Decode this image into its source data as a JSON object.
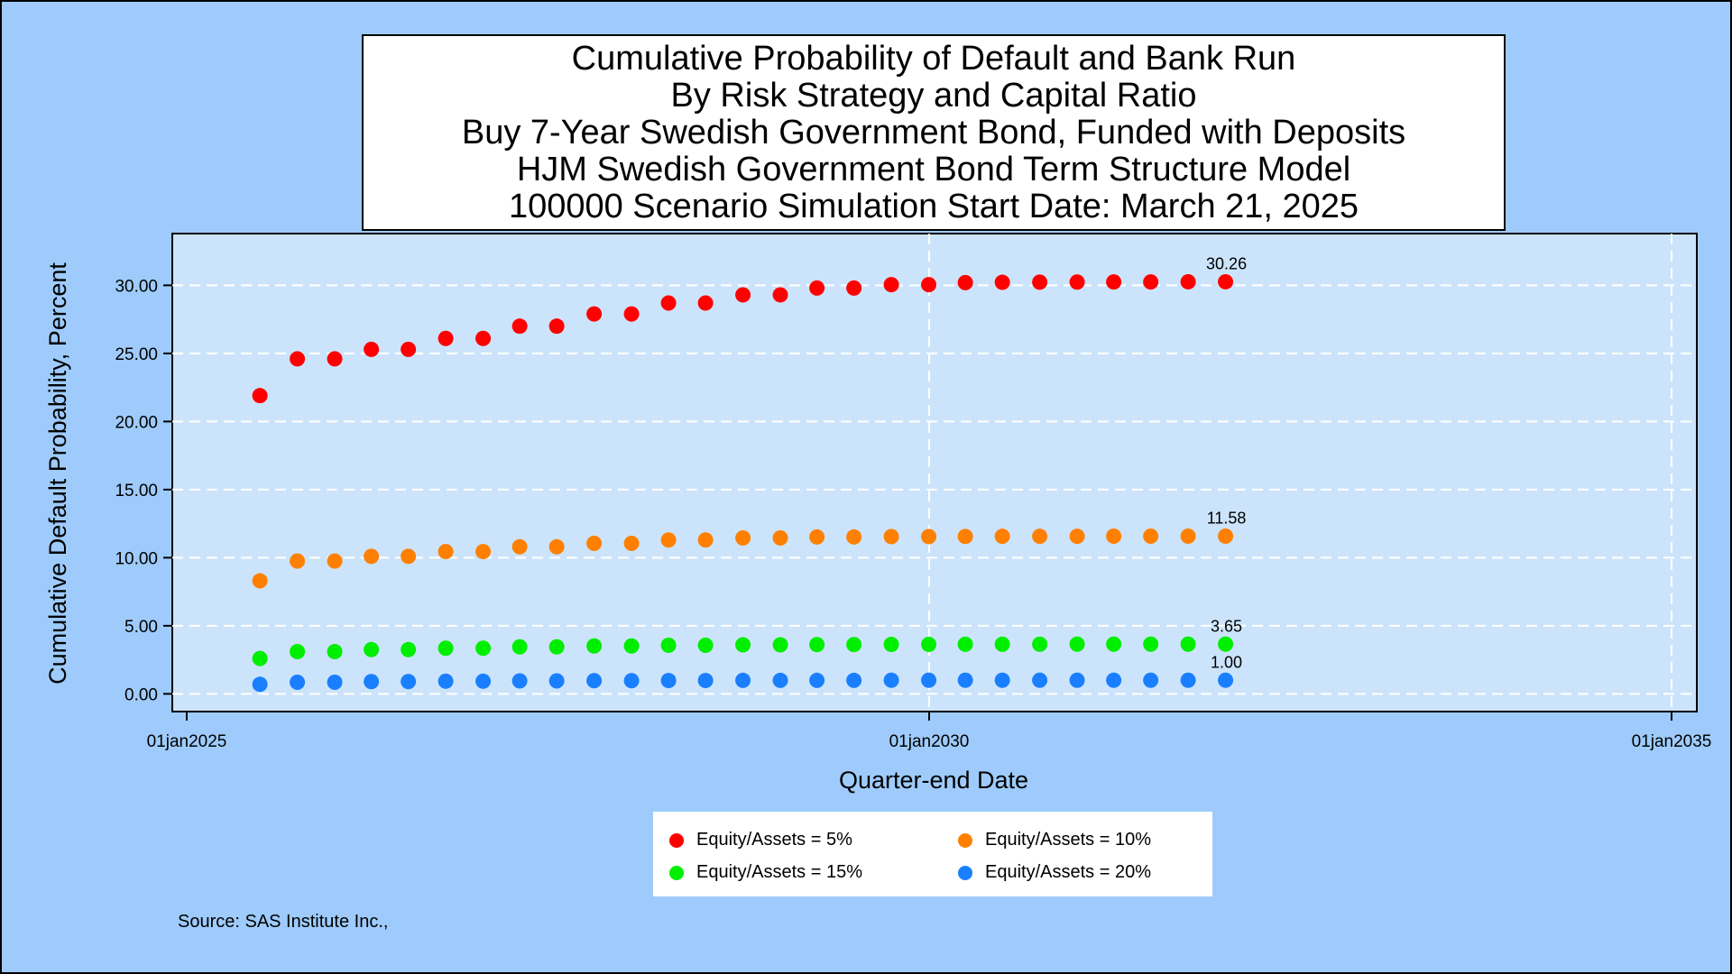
{
  "chart_data": {
    "type": "scatter",
    "title_lines": [
      "Cumulative Probability of Default and Bank Run",
      "By Risk Strategy and Capital Ratio",
      "Buy 7-Year Swedish Government Bond, Funded with Deposits",
      "HJM Swedish Government Bond Term Structure Model",
      "100000 Scenario Simulation Start Date: March 21, 2025"
    ],
    "xlabel": "Quarter-end Date",
    "ylabel": "Cumulative Default Probability, Percent",
    "x_ticks": [
      "01jan2025",
      "01jan2030",
      "01jan2035"
    ],
    "y_ticks": [
      "0.00",
      "5.00",
      "10.00",
      "15.00",
      "20.00",
      "25.00",
      "30.00"
    ],
    "x": [
      "2025-06-30",
      "2025-09-30",
      "2025-12-31",
      "2026-03-31",
      "2026-06-30",
      "2026-09-30",
      "2026-12-31",
      "2027-03-31",
      "2027-06-30",
      "2027-09-30",
      "2027-12-31",
      "2028-03-31",
      "2028-06-30",
      "2028-09-30",
      "2028-12-31",
      "2029-03-31",
      "2029-06-30",
      "2029-09-30",
      "2029-12-31",
      "2030-03-31",
      "2030-06-30",
      "2030-09-30",
      "2030-12-31",
      "2031-03-31",
      "2031-06-30",
      "2031-09-30",
      "2031-12-31"
    ],
    "xlim": [
      "2025-01-01",
      "2035-01-01"
    ],
    "ylim": [
      -1.3,
      33.8
    ],
    "grid": true,
    "legend_position": "bottom",
    "series": [
      {
        "name": "Equity/Assets = 5%",
        "color": "#ff0000",
        "end_label": "30.26",
        "values": [
          21.9,
          24.6,
          24.6,
          25.3,
          25.3,
          26.1,
          26.1,
          27.0,
          27.0,
          27.9,
          27.9,
          28.7,
          28.7,
          29.3,
          29.3,
          29.8,
          29.8,
          30.05,
          30.05,
          30.2,
          30.22,
          30.23,
          30.24,
          30.25,
          30.25,
          30.26,
          30.26
        ]
      },
      {
        "name": "Equity/Assets = 10%",
        "color": "#ff8000",
        "end_label": "11.58",
        "values": [
          8.3,
          9.75,
          9.75,
          10.1,
          10.1,
          10.45,
          10.45,
          10.8,
          10.8,
          11.05,
          11.05,
          11.3,
          11.3,
          11.45,
          11.45,
          11.52,
          11.52,
          11.55,
          11.55,
          11.56,
          11.57,
          11.57,
          11.57,
          11.58,
          11.58,
          11.58,
          11.58
        ]
      },
      {
        "name": "Equity/Assets = 15%",
        "color": "#00ee00",
        "end_label": "3.65",
        "values": [
          2.6,
          3.1,
          3.1,
          3.25,
          3.25,
          3.35,
          3.35,
          3.45,
          3.45,
          3.52,
          3.52,
          3.57,
          3.57,
          3.6,
          3.6,
          3.62,
          3.62,
          3.63,
          3.63,
          3.64,
          3.64,
          3.64,
          3.65,
          3.65,
          3.65,
          3.65,
          3.65
        ]
      },
      {
        "name": "Equity/Assets = 20%",
        "color": "#1a7fff",
        "end_label": "1.00",
        "values": [
          0.7,
          0.85,
          0.85,
          0.9,
          0.9,
          0.93,
          0.93,
          0.95,
          0.95,
          0.97,
          0.97,
          0.98,
          0.98,
          0.99,
          0.99,
          0.99,
          0.99,
          1.0,
          1.0,
          1.0,
          1.0,
          1.0,
          1.0,
          1.0,
          1.0,
          1.0,
          1.0
        ]
      }
    ],
    "source": "Source: SAS Institute Inc.,"
  }
}
